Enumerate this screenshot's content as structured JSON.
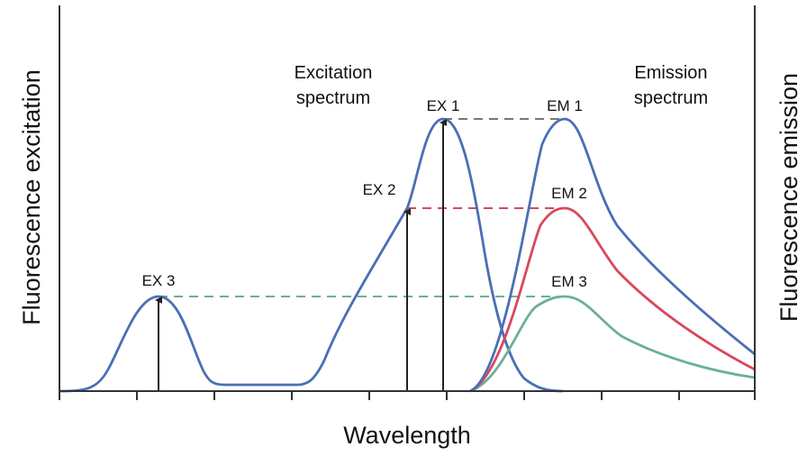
{
  "axes": {
    "x_label": "Wavelength",
    "y_left_label": "Fluorescence excitation",
    "y_right_label": "Fluorescence emission"
  },
  "annotations": {
    "excitation_spectrum": [
      "Excitation",
      "spectrum"
    ],
    "emission_spectrum": [
      "Emission",
      "spectrum"
    ]
  },
  "peaks": {
    "ex1": "EX 1",
    "ex2": "EX 2",
    "ex3": "EX 3",
    "em1": "EM 1",
    "em2": "EM 2",
    "em3": "EM 3"
  },
  "colors": {
    "excitation_curve": "#4a6fb5",
    "em1_curve": "#4a6fb5",
    "em2_curve": "#d9475c",
    "em3_curve": "#6cb096",
    "ex1_link": "#777777",
    "ex2_link": "#d9475c",
    "ex3_link": "#6cb096",
    "axis": "#333333",
    "arrow": "#222222"
  }
}
